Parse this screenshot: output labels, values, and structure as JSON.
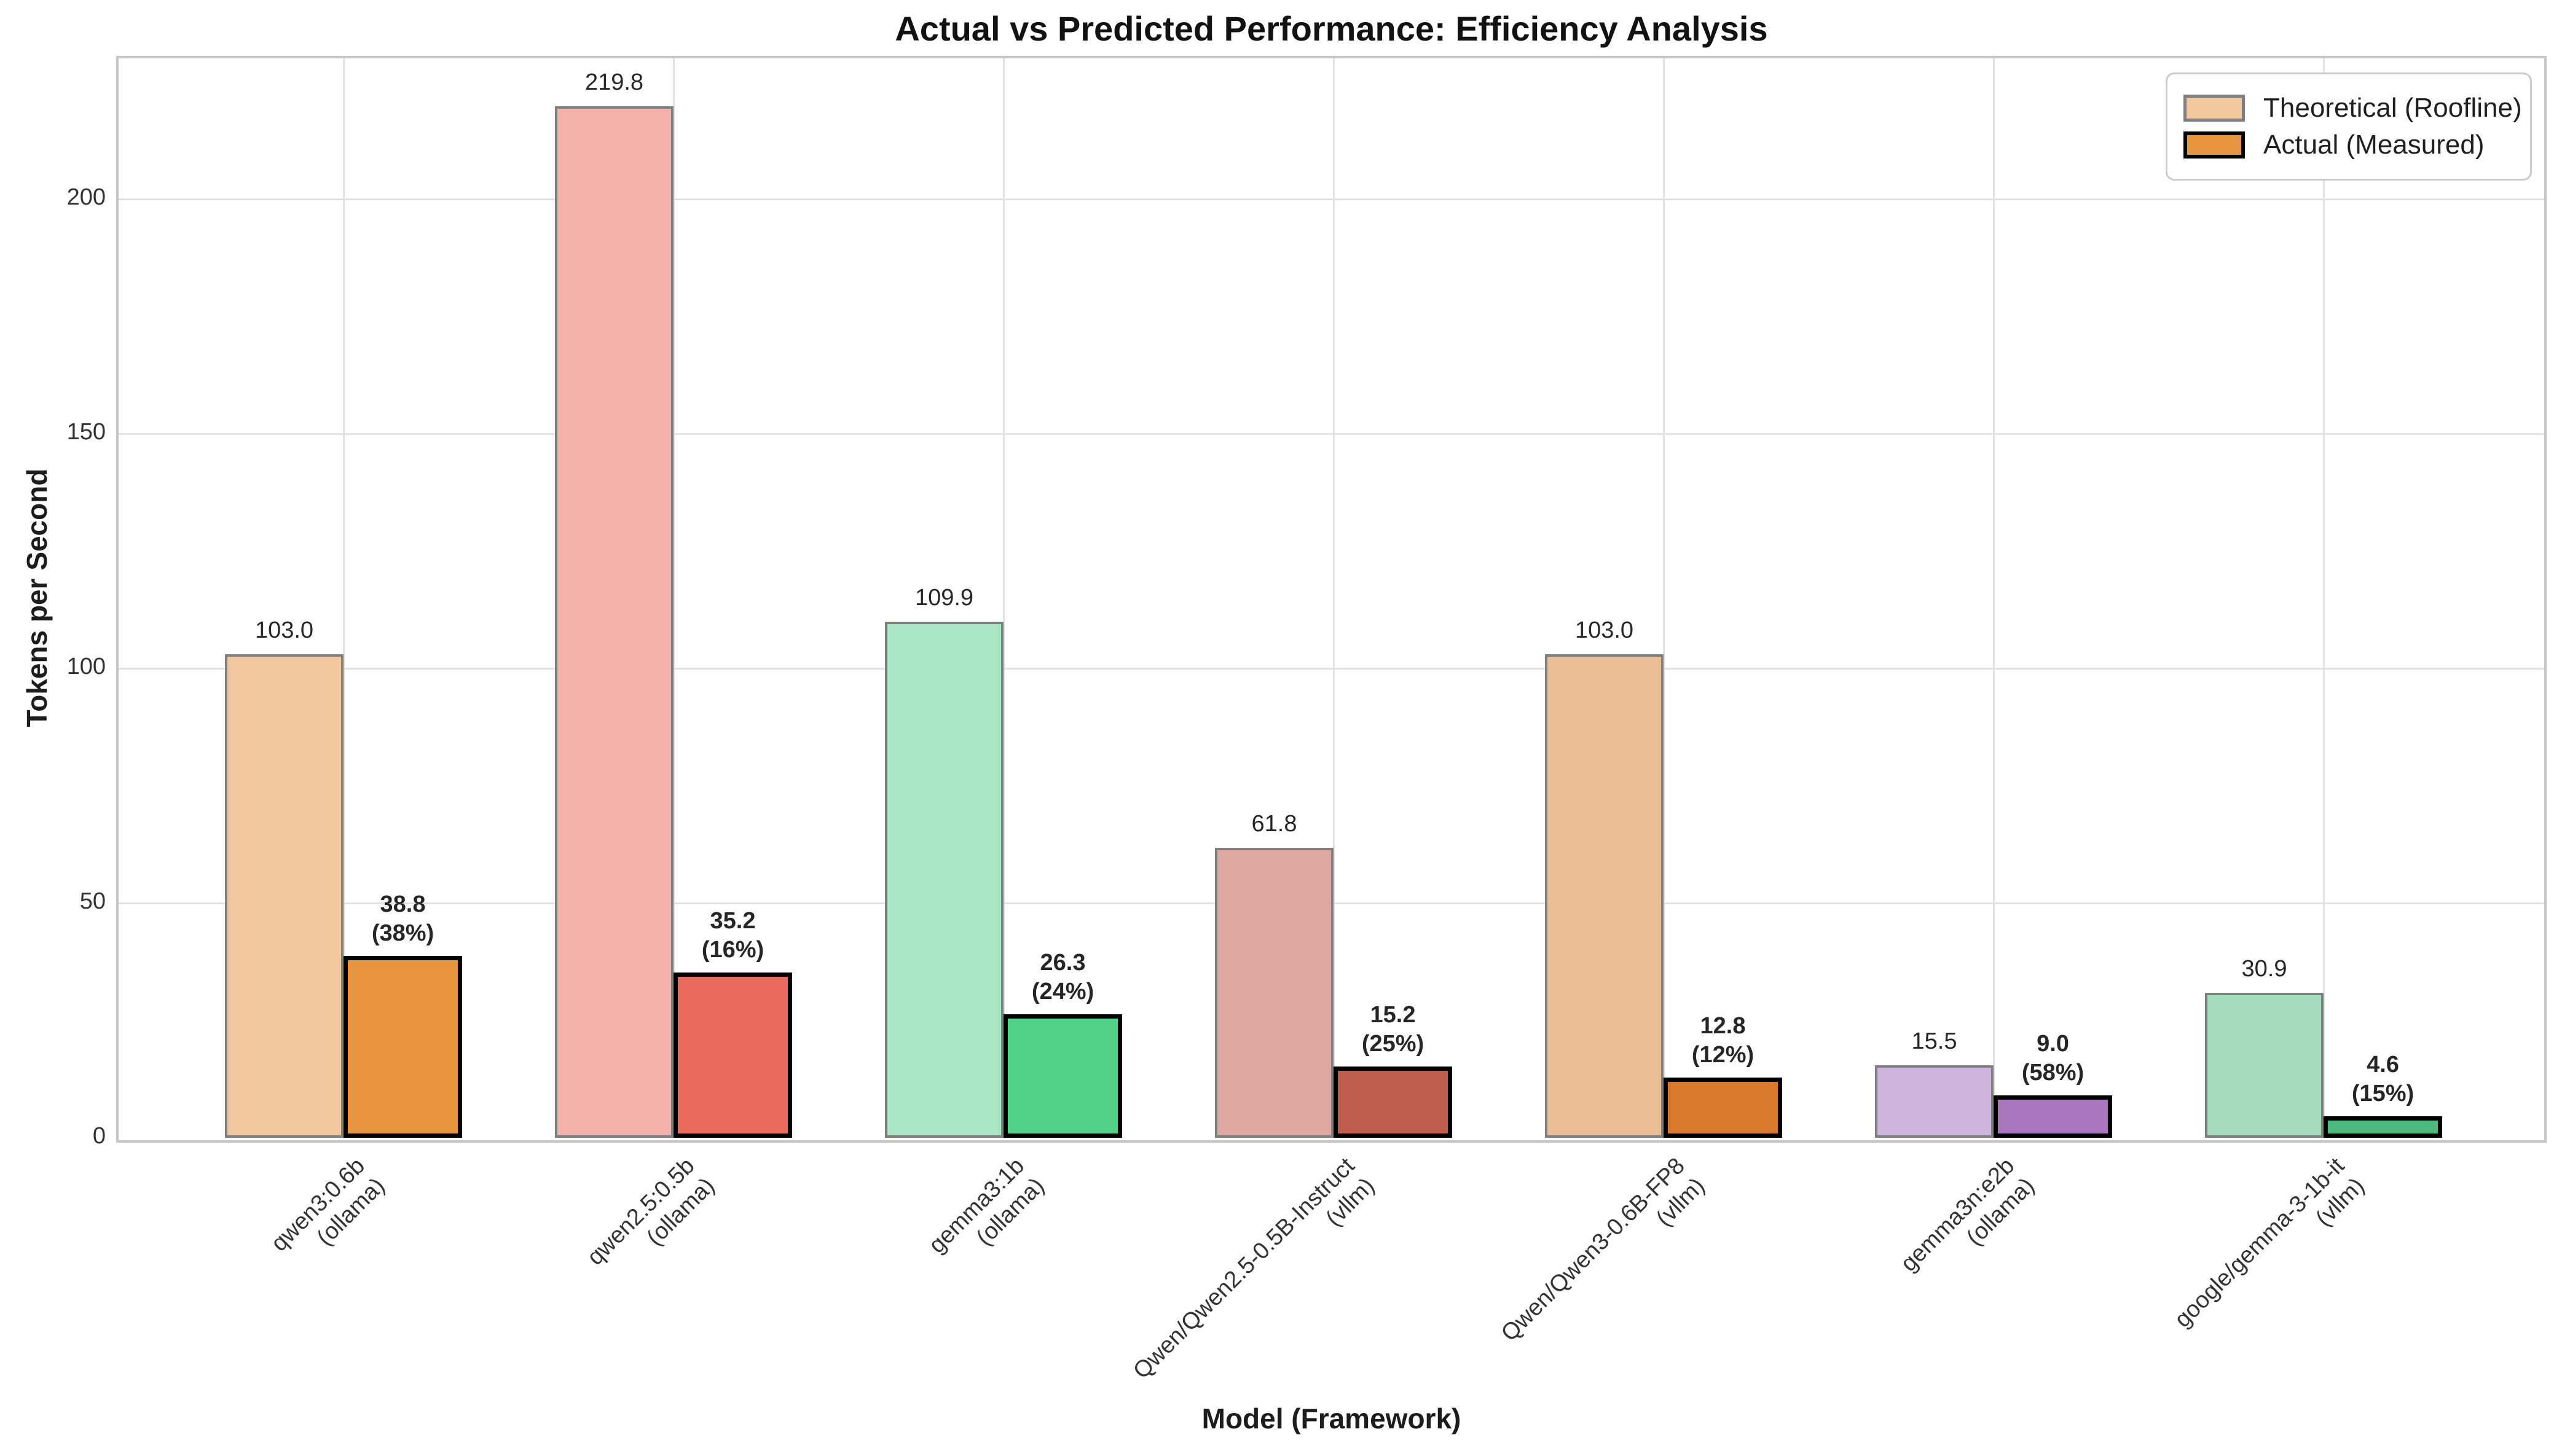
{
  "title": "Actual vs Predicted Performance: Efficiency Analysis",
  "chart_data": {
    "type": "bar",
    "title": "Actual vs Predicted Performance: Efficiency Analysis",
    "xlabel": "Model (Framework)",
    "ylabel": "Tokens per Second",
    "ylim": [
      0,
      230
    ],
    "yticks": [
      0,
      50,
      100,
      150,
      200
    ],
    "grid": "both",
    "legend": {
      "position": "upper right",
      "items": [
        {
          "label": "Theoretical (Roofline)",
          "fill": "#F2C79E",
          "edge": "#7f7f7f"
        },
        {
          "label": "Actual (Measured)",
          "fill": "#E8953F",
          "edge": "#000000"
        }
      ]
    },
    "groups": [
      {
        "model": "qwen3:0.6b",
        "framework": "ollama",
        "theoretical": 103.0,
        "actual": 38.8,
        "efficiency_pct": 38,
        "theo_fill": "#F2C79E",
        "actual_fill": "#E8953F"
      },
      {
        "model": "qwen2.5:0.5b",
        "framework": "ollama",
        "theoretical": 219.8,
        "actual": 35.2,
        "efficiency_pct": 16,
        "theo_fill": "#F5B2AC",
        "actual_fill": "#EA6A5E"
      },
      {
        "model": "gemma3:1b",
        "framework": "ollama",
        "theoretical": 109.9,
        "actual": 26.3,
        "efficiency_pct": 24,
        "theo_fill": "#ABE7C4",
        "actual_fill": "#51D288"
      },
      {
        "model": "Qwen/Qwen2.5-0.5B-Instruct",
        "framework": "vllm",
        "theoretical": 61.8,
        "actual": 15.2,
        "efficiency_pct": 25,
        "theo_fill": "#DFA8A1",
        "actual_fill": "#C05C4E"
      },
      {
        "model": "Qwen/Qwen3-0.6B-FP8",
        "framework": "vllm",
        "theoretical": 103.0,
        "actual": 12.8,
        "efficiency_pct": 12,
        "theo_fill": "#EBBD97",
        "actual_fill": "#D8792B"
      },
      {
        "model": "gemma3n:e2b",
        "framework": "ollama",
        "theoretical": 15.5,
        "actual": 9.0,
        "efficiency_pct": 58,
        "theo_fill": "#CFB4E0",
        "actual_fill": "#A877BF"
      },
      {
        "model": "google/gemma-3-1b-it",
        "framework": "vllm",
        "theoretical": 30.9,
        "actual": 4.6,
        "efficiency_pct": 15,
        "theo_fill": "#A5DDBC",
        "actual_fill": "#4CB97D"
      }
    ],
    "theoretical_edge_color": "#7f7f7f",
    "actual_edge_color": "#000000"
  }
}
